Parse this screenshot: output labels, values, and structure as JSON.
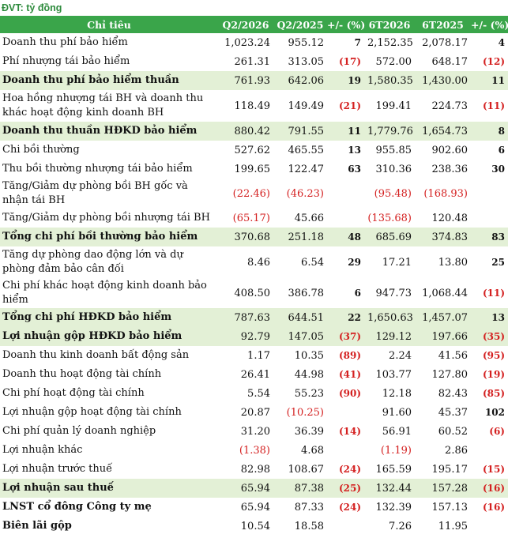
{
  "unit_label": "ĐVT: tỷ đồng",
  "headers": [
    "Chỉ tiêu",
    "Q2/2026",
    "Q2/2025",
    "+/- (%)",
    "6T2026",
    "6T2025",
    "+/- (%)"
  ],
  "rows": [
    {
      "label": "Doanh thu phí bảo hiểm",
      "q2_2026": "1,023.24",
      "q2_2025": "955.12",
      "q_chg": "7",
      "h1_2026": "2,152.35",
      "h1_2025": "2,078.17",
      "h_chg": "4",
      "bold": false,
      "hl": false,
      "h": 24
    },
    {
      "label": "Phí nhượng tái bảo hiểm",
      "q2_2026": "261.31",
      "q2_2025": "313.05",
      "q_chg": "(17)",
      "h1_2026": "572.00",
      "h1_2025": "648.17",
      "h_chg": "(12)",
      "bold": false,
      "hl": false,
      "h": 24
    },
    {
      "label": "Doanh thu phí bảo hiểm thuần",
      "q2_2026": "761.93",
      "q2_2025": "642.06",
      "q_chg": "19",
      "h1_2026": "1,580.35",
      "h1_2025": "1,430.00",
      "h_chg": "11",
      "bold": true,
      "hl": true,
      "h": 24
    },
    {
      "label": "Hoa hồng nhượng tái BH và doanh thu khác hoạt động kinh doanh BH",
      "q2_2026": "118.49",
      "q2_2025": "149.49",
      "q_chg": "(21)",
      "h1_2026": "199.41",
      "h1_2025": "224.73",
      "h_chg": "(11)",
      "bold": false,
      "hl": false,
      "h": 40
    },
    {
      "label": "Doanh thu thuần HĐKD bảo hiểm",
      "q2_2026": "880.42",
      "q2_2025": "791.55",
      "q_chg": "11",
      "h1_2026": "1,779.76",
      "h1_2025": "1,654.73",
      "h_chg": "8",
      "bold": true,
      "hl": true,
      "h": 24
    },
    {
      "label": "Chi bồi thường",
      "q2_2026": "527.62",
      "q2_2025": "465.55",
      "q_chg": "13",
      "h1_2026": "955.85",
      "h1_2025": "902.60",
      "h_chg": "6",
      "bold": false,
      "hl": false,
      "h": 24
    },
    {
      "label": "Thu bồi thường nhượng tái bảo hiểm",
      "q2_2026": "199.65",
      "q2_2025": "122.47",
      "q_chg": "63",
      "h1_2026": "310.36",
      "h1_2025": "238.36",
      "h_chg": "30",
      "bold": false,
      "hl": false,
      "h": 24
    },
    {
      "label": "Tăng/Giảm dự phòng bồi BH gốc và nhận tái BH",
      "q2_2026": "(22.46)",
      "q2_2025": "(46.23)",
      "q_chg": "",
      "h1_2026": "(95.48)",
      "h1_2025": "(168.93)",
      "h_chg": "",
      "bold": false,
      "hl": false,
      "h": 38
    },
    {
      "label": "Tăng/Giảm dự phòng bồi nhượng tái BH",
      "q2_2026": "(65.17)",
      "q2_2025": "45.66",
      "q_chg": "",
      "h1_2026": "(135.68)",
      "h1_2025": "120.48",
      "h_chg": "",
      "bold": false,
      "hl": false,
      "h": 24
    },
    {
      "label": "Tổng chi phí bồi thường bảo hiểm",
      "q2_2026": "370.68",
      "q2_2025": "251.18",
      "q_chg": "48",
      "h1_2026": "685.69",
      "h1_2025": "374.83",
      "h_chg": "83",
      "bold": true,
      "hl": true,
      "h": 24
    },
    {
      "label": "Tăng dự phòng dao động lớn và dự phòng đảm bảo cân đối",
      "q2_2026": "8.46",
      "q2_2025": "6.54",
      "q_chg": "29",
      "h1_2026": "17.21",
      "h1_2025": "13.80",
      "h_chg": "25",
      "bold": false,
      "hl": false,
      "h": 40
    },
    {
      "label": "Chi phí khác hoạt động kinh doanh bảo hiểm",
      "q2_2026": "408.50",
      "q2_2025": "386.78",
      "q_chg": "6",
      "h1_2026": "947.73",
      "h1_2025": "1,068.44",
      "h_chg": "(11)",
      "bold": false,
      "hl": false,
      "h": 38
    },
    {
      "label": "Tổng chi phí HĐKD bảo hiểm",
      "q2_2026": "787.63",
      "q2_2025": "644.51",
      "q_chg": "22",
      "h1_2026": "1,650.63",
      "h1_2025": "1,457.07",
      "h_chg": "13",
      "bold": true,
      "hl": true,
      "h": 24
    },
    {
      "label": "Lợi nhuận gộp HĐKD bảo hiểm",
      "q2_2026": "92.79",
      "q2_2025": "147.05",
      "q_chg": "(37)",
      "h1_2026": "129.12",
      "h1_2025": "197.66",
      "h_chg": "(35)",
      "bold": true,
      "hl": true,
      "h": 24
    },
    {
      "label": "Doanh thu kinh doanh bất động sản",
      "q2_2026": "1.17",
      "q2_2025": "10.35",
      "q_chg": "(89)",
      "h1_2026": "2.24",
      "h1_2025": "41.56",
      "h_chg": "(95)",
      "bold": false,
      "hl": false,
      "h": 24
    },
    {
      "label": "Doanh thu hoạt động tài chính",
      "q2_2026": "26.41",
      "q2_2025": "44.98",
      "q_chg": "(41)",
      "h1_2026": "103.77",
      "h1_2025": "127.80",
      "h_chg": "(19)",
      "bold": false,
      "hl": false,
      "h": 24
    },
    {
      "label": "Chi phí hoạt động tài chính",
      "q2_2026": "5.54",
      "q2_2025": "55.23",
      "q_chg": "(90)",
      "h1_2026": "12.18",
      "h1_2025": "82.43",
      "h_chg": "(85)",
      "bold": false,
      "hl": false,
      "h": 24
    },
    {
      "label": "Lợi nhuận gộp hoạt động tài chính",
      "q2_2026": "20.87",
      "q2_2025": "(10.25)",
      "q_chg": "",
      "h1_2026": "91.60",
      "h1_2025": "45.37",
      "h_chg": "102",
      "bold": false,
      "hl": false,
      "h": 24
    },
    {
      "label": "Chi phí quản lý doanh nghiệp",
      "q2_2026": "31.20",
      "q2_2025": "36.39",
      "q_chg": "(14)",
      "h1_2026": "56.91",
      "h1_2025": "60.52",
      "h_chg": "(6)",
      "bold": false,
      "hl": false,
      "h": 24
    },
    {
      "label": "Lợi nhuận khác",
      "q2_2026": "(1.38)",
      "q2_2025": "4.68",
      "q_chg": "",
      "h1_2026": "(1.19)",
      "h1_2025": "2.86",
      "h_chg": "",
      "bold": false,
      "hl": false,
      "h": 24
    },
    {
      "label": "Lợi nhuận trước thuế",
      "q2_2026": "82.98",
      "q2_2025": "108.67",
      "q_chg": "(24)",
      "h1_2026": "165.59",
      "h1_2025": "195.17",
      "h_chg": "(15)",
      "bold": false,
      "hl": false,
      "h": 24
    },
    {
      "label": "Lợi nhuận sau thuế",
      "q2_2026": "65.94",
      "q2_2025": "87.38",
      "q_chg": "(25)",
      "h1_2026": "132.44",
      "h1_2025": "157.28",
      "h_chg": "(16)",
      "bold": true,
      "hl": true,
      "h": 24
    },
    {
      "label": "LNST cổ đông Công ty mẹ",
      "q2_2026": "65.94",
      "q2_2025": "87.33",
      "q_chg": "(24)",
      "h1_2026": "132.39",
      "h1_2025": "157.13",
      "h_chg": "(16)",
      "bold": true,
      "hl": false,
      "h": 24
    },
    {
      "label": "Biên lãi gộp",
      "q2_2026": "10.54",
      "q2_2025": "18.58",
      "q_chg": "",
      "h1_2026": "7.26",
      "h1_2025": "11.95",
      "h_chg": "",
      "bold": true,
      "hl": false,
      "h": 24
    }
  ]
}
